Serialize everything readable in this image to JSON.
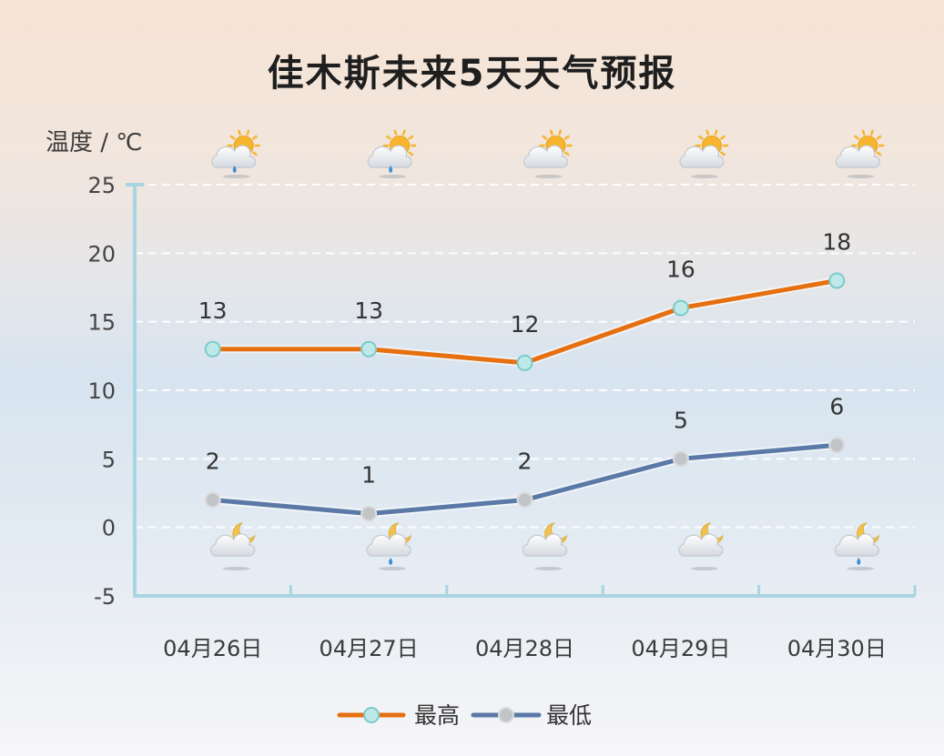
{
  "title": "佳木斯未来5天天气预报",
  "colors": {
    "high_line": "#e6700f",
    "high_marker_fill": "#bfe8e8",
    "high_marker_stroke": "#7ccaca",
    "low_line": "#5a79a6",
    "low_marker_fill": "#c2c5c8",
    "low_marker_stroke": "#dcdcdc",
    "axis": "#a9d5e2",
    "grid": "#ffffff",
    "sun": "#f6b52d",
    "moon": "#f1c24f",
    "rain": "#3c8fd8"
  },
  "chart_data": {
    "type": "line",
    "title": "佳木斯未来5天天气预报",
    "xlabel": "",
    "ylabel": "温度 / ℃",
    "ylim": [
      -5,
      25
    ],
    "yticks": [
      25,
      20,
      15,
      10,
      5,
      0,
      -5
    ],
    "categories": [
      "04月26日",
      "04月27日",
      "04月28日",
      "04月29日",
      "04月30日"
    ],
    "series": [
      {
        "name": "最高",
        "values": [
          13,
          13,
          12,
          16,
          18
        ]
      },
      {
        "name": "最低",
        "values": [
          2,
          1,
          2,
          5,
          6
        ]
      }
    ],
    "grid": true,
    "legend": "bottom-center"
  },
  "weather": {
    "day_icons": [
      "sun-cloud-rain-icon",
      "sun-cloud-rain-icon",
      "sun-cloud-icon",
      "sun-cloud-icon",
      "sun-cloud-icon"
    ],
    "night_icons": [
      "moon-cloud-icon",
      "moon-cloud-rain-icon",
      "moon-cloud-icon",
      "moon-cloud-icon",
      "moon-cloud-rain-icon"
    ]
  }
}
